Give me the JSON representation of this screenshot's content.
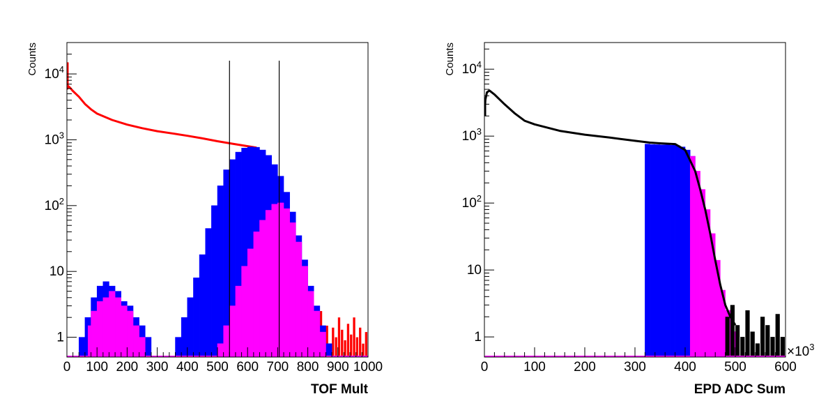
{
  "colors": {
    "red": "#ff0000",
    "blue": "#0000ff",
    "magenta": "#ff00ff",
    "black": "#000000"
  },
  "chart_data": [
    {
      "type": "histogram",
      "xlabel": "TOF Mult",
      "ylabel": "Counts",
      "xlim": [
        0,
        1000
      ],
      "ylim": [
        0.5,
        30000
      ],
      "yscale": "log",
      "x_ticks": [
        "0",
        "100",
        "200",
        "300",
        "400",
        "500",
        "600",
        "700",
        "800",
        "900",
        "1000"
      ],
      "y_ticks": [
        {
          "base": "1",
          "exp": "",
          "value": 1
        },
        {
          "base": "10",
          "exp": "",
          "value": 10
        },
        {
          "base": "10",
          "exp": "2",
          "value": 100
        },
        {
          "base": "10",
          "exp": "3",
          "value": 1000
        },
        {
          "base": "10",
          "exp": "4",
          "value": 10000
        }
      ],
      "cut_lines": [
        540,
        705
      ],
      "series": [
        {
          "style": "line",
          "color": "red",
          "x": [
            0,
            2,
            5,
            10,
            20,
            40,
            60,
            80,
            100,
            150,
            200,
            250,
            300,
            350,
            400,
            450,
            500,
            550,
            600,
            630
          ],
          "y": [
            15000,
            6000,
            6500,
            6200,
            5500,
            4500,
            3500,
            2900,
            2500,
            2000,
            1700,
            1500,
            1350,
            1250,
            1150,
            1050,
            950,
            870,
            800,
            760
          ]
        },
        {
          "style": "step",
          "color": "red",
          "x": [
            840,
            850,
            860,
            870,
            880,
            890,
            900,
            910,
            920,
            930,
            940,
            950,
            960,
            970,
            980,
            990
          ],
          "y": [
            2.5,
            1.2,
            1.5,
            0.8,
            1.4,
            1.0,
            2.0,
            1.3,
            0.9,
            1.6,
            1.1,
            2.0,
            1.0,
            1.4,
            0.8,
            1.2
          ]
        },
        {
          "style": "fill",
          "color": "blue",
          "x": [
            40,
            60,
            80,
            100,
            120,
            140,
            160,
            180,
            200,
            220,
            240,
            260,
            280,
            300,
            320,
            340,
            360,
            380,
            400,
            420,
            440,
            460,
            480,
            500,
            520,
            540,
            560,
            580,
            600,
            620,
            640,
            660,
            680,
            700,
            720,
            740,
            760,
            780,
            800,
            820,
            840,
            860,
            880
          ],
          "y": [
            1,
            2,
            4,
            6,
            7,
            6,
            5,
            3.5,
            3,
            2,
            1.5,
            1,
            0.5,
            0.5,
            0.5,
            0.5,
            1,
            2,
            4,
            8,
            18,
            45,
            100,
            200,
            350,
            500,
            650,
            750,
            780,
            770,
            700,
            580,
            420,
            280,
            160,
            80,
            35,
            15,
            6,
            3,
            1.5,
            0.8,
            0.5
          ]
        },
        {
          "style": "fill",
          "color": "magenta",
          "x": [
            70,
            80,
            100,
            120,
            140,
            160,
            180,
            200,
            220,
            240,
            260,
            280,
            300,
            400,
            500,
            520,
            540,
            560,
            580,
            600,
            620,
            640,
            660,
            680,
            700,
            720,
            740,
            760,
            780,
            800,
            820,
            840,
            860
          ],
          "y": [
            1.5,
            2.5,
            3.5,
            4,
            5,
            4,
            3,
            2.5,
            1.5,
            1,
            0.5,
            0.5,
            0.5,
            0.5,
            0.8,
            1.5,
            3,
            6,
            12,
            22,
            40,
            60,
            85,
            105,
            110,
            90,
            55,
            28,
            12,
            5,
            2.5,
            1.2,
            0.5
          ]
        }
      ]
    },
    {
      "type": "histogram",
      "xlabel": "EPD ADC Sum",
      "ylabel": "Counts",
      "x_multiplier": "×10",
      "x_multiplier_exp": "3",
      "xlim": [
        0,
        600
      ],
      "ylim": [
        0.5,
        25000
      ],
      "yscale": "log",
      "x_ticks": [
        "0",
        "100",
        "200",
        "300",
        "400",
        "500",
        "600"
      ],
      "y_ticks": [
        {
          "base": "1",
          "exp": "",
          "value": 1
        },
        {
          "base": "10",
          "exp": "",
          "value": 10
        },
        {
          "base": "10",
          "exp": "2",
          "value": 100
        },
        {
          "base": "10",
          "exp": "3",
          "value": 1000
        },
        {
          "base": "10",
          "exp": "4",
          "value": 10000
        }
      ],
      "series": [
        {
          "style": "fill",
          "color": "blue",
          "x": [
            320,
            330,
            340,
            350,
            360,
            370,
            380,
            390,
            400,
            410
          ],
          "y": [
            760,
            750,
            745,
            740,
            740,
            730,
            720,
            690,
            620,
            500
          ]
        },
        {
          "style": "fill",
          "color": "magenta",
          "x": [
            410,
            420,
            430,
            440,
            450,
            460,
            470,
            480,
            490,
            500
          ],
          "y": [
            500,
            300,
            160,
            80,
            35,
            14,
            5,
            2.5,
            1.2,
            0.5
          ]
        },
        {
          "style": "line",
          "color": "black",
          "x": [
            0,
            2,
            5,
            10,
            20,
            40,
            60,
            80,
            100,
            150,
            200,
            250,
            300,
            330,
            350,
            380,
            400,
            420,
            430,
            440,
            450,
            460,
            470,
            480,
            490,
            500
          ],
          "y": [
            2000,
            3500,
            4500,
            4800,
            4200,
            3000,
            2200,
            1700,
            1500,
            1200,
            1050,
            950,
            850,
            800,
            780,
            760,
            620,
            300,
            160,
            80,
            35,
            14,
            6,
            3,
            2,
            1.5
          ]
        },
        {
          "style": "step",
          "color": "black",
          "x": [
            480,
            490,
            500,
            510,
            520,
            530,
            540,
            550,
            560,
            570,
            580,
            590
          ],
          "y": [
            2,
            3,
            1.5,
            1,
            2.5,
            1.2,
            0.8,
            2,
            1.5,
            1,
            2.2,
            1
          ]
        }
      ]
    }
  ]
}
